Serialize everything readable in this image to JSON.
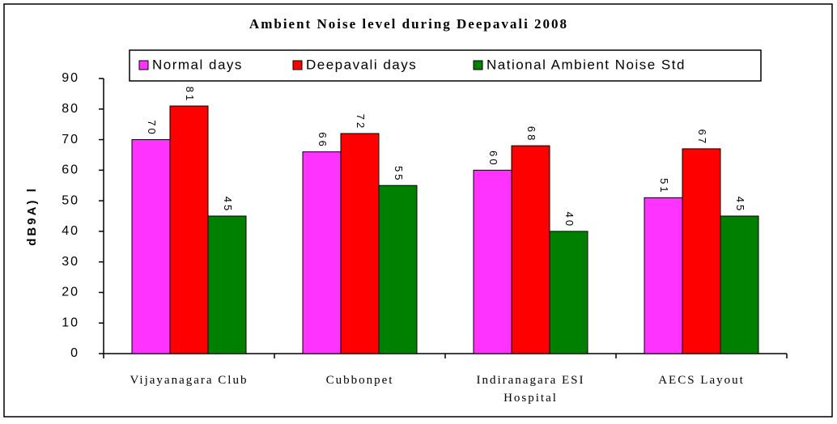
{
  "chart_data": {
    "type": "bar",
    "title": "Ambient Noise level during Deepavali 2008",
    "y_label": "dB9A) l",
    "categories": [
      "Vijayanagara Club",
      "Cubbonpet",
      "Indiranagara ESI Hospital",
      "AECS Layout"
    ],
    "series": [
      {
        "name": "Normal days",
        "color": "#ff33ff",
        "values": [
          70,
          66,
          60,
          51
        ]
      },
      {
        "name": "Deepavali days",
        "color": "#ff0000",
        "values": [
          81,
          72,
          68,
          67
        ]
      },
      {
        "name": "National Ambient Noise Std",
        "color": "#008000",
        "values": [
          45,
          55,
          40,
          45
        ]
      }
    ],
    "ylim": [
      0,
      90
    ],
    "yticks": [
      0,
      10,
      20,
      30,
      40,
      50,
      60,
      70,
      80,
      90
    ],
    "legend": "top"
  }
}
